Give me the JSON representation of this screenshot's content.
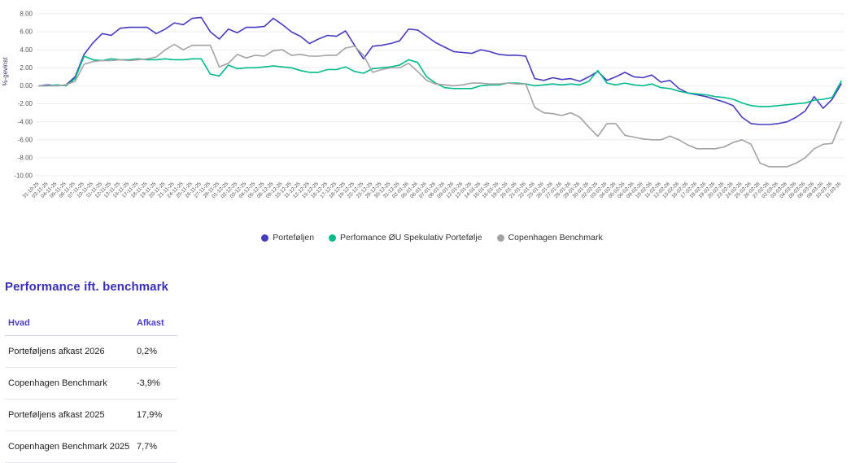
{
  "chart_data": {
    "type": "line",
    "title": "",
    "ylabel": "%-gevinst",
    "ylim": [
      -10,
      8
    ],
    "ytick_step": 2,
    "grid": true,
    "legend_position": "bottom",
    "x": [
      "31-10-25",
      "03-11-25",
      "04-11-25",
      "05-11-25",
      "06-11-25",
      "07-11-25",
      "10-11-25",
      "11-11-25",
      "12-11-25",
      "13-11-25",
      "14-11-25",
      "17-11-25",
      "18-11-25",
      "19-11-25",
      "20-11-25",
      "21-11-25",
      "24-11-25",
      "25-11-25",
      "26-11-25",
      "27-11-25",
      "28-11-25",
      "01-12-25",
      "02-12-25",
      "03-12-25",
      "04-12-25",
      "05-12-25",
      "08-12-25",
      "09-12-25",
      "10-12-25",
      "11-12-25",
      "12-12-25",
      "15-12-25",
      "16-12-25",
      "17-12-25",
      "18-12-25",
      "19-12-25",
      "22-12-25",
      "23-12-25",
      "29-12-25",
      "30-12-25",
      "31-12-25",
      "02-01-26",
      "05-01-26",
      "06-01-26",
      "07-01-26",
      "08-01-26",
      "09-01-26",
      "12-01-26",
      "13-01-26",
      "14-01-26",
      "15-01-26",
      "16-01-26",
      "19-01-26",
      "20-01-26",
      "21-01-26",
      "22-01-26",
      "23-01-26",
      "26-01-26",
      "27-01-26",
      "28-01-26",
      "29-01-26",
      "30-01-26",
      "02-02-26",
      "03-02-26",
      "04-02-26",
      "05-02-26",
      "06-02-26",
      "09-02-26",
      "10-02-26",
      "11-02-26",
      "12-02-26",
      "13-02-26",
      "16-02-26",
      "17-02-26",
      "18-02-26",
      "19-02-26",
      "20-02-26",
      "23-02-26",
      "24-02-26",
      "25-02-26",
      "26-02-26",
      "27-02-26",
      "02-03-26",
      "03-03-26",
      "04-03-26",
      "05-03-26",
      "06-03-26",
      "09-03-26",
      "10-03-26",
      "11-03-26"
    ],
    "series": [
      {
        "name": "Porteføljen",
        "color": "#473cc0",
        "values": [
          0,
          0.1,
          0,
          0.1,
          1.0,
          3.5,
          4.8,
          5.8,
          5.6,
          6.4,
          6.5,
          6.5,
          6.5,
          5.8,
          6.3,
          7.0,
          6.8,
          7.5,
          7.6,
          6.0,
          5.2,
          6.3,
          5.9,
          6.5,
          6.5,
          6.6,
          7.5,
          6.8,
          6.0,
          5.5,
          4.7,
          5.2,
          5.6,
          5.5,
          6.1,
          4.5,
          3.0,
          4.4,
          4.5,
          4.7,
          5.0,
          6.3,
          6.2,
          5.5,
          4.8,
          4.3,
          3.8,
          3.7,
          3.6,
          4.0,
          3.8,
          3.5,
          3.4,
          3.4,
          3.3,
          0.8,
          0.6,
          0.9,
          0.7,
          0.8,
          0.5,
          1.0,
          1.6,
          0.6,
          1.0,
          1.5,
          1.0,
          0.9,
          1.2,
          0.4,
          0.6,
          -0.3,
          -0.8,
          -1.0,
          -1.2,
          -1.5,
          -1.8,
          -2.2,
          -3.5,
          -4.2,
          -4.3,
          -4.3,
          -4.2,
          -4.0,
          -3.5,
          -2.8,
          -1.2,
          -2.5,
          -1.5,
          0.2
        ]
      },
      {
        "name": "Perfomance ØU Spekulativ Portefølje",
        "color": "#00bb8d",
        "values": [
          0,
          0,
          0.1,
          0,
          0.8,
          3.3,
          2.9,
          2.8,
          3.0,
          2.9,
          2.9,
          3.0,
          2.9,
          2.9,
          3.0,
          2.9,
          2.9,
          3.0,
          3.0,
          1.3,
          1.1,
          2.3,
          1.9,
          2.0,
          2.0,
          2.1,
          2.2,
          2.1,
          2.0,
          1.7,
          1.5,
          1.5,
          1.8,
          1.8,
          2.1,
          1.6,
          1.4,
          1.9,
          2.0,
          2.1,
          2.3,
          2.9,
          2.6,
          1.0,
          0.3,
          -0.2,
          -0.3,
          -0.3,
          -0.3,
          0.0,
          0.1,
          0.1,
          0.3,
          0.3,
          0.2,
          0.0,
          0.1,
          0.2,
          0.1,
          0.2,
          0.1,
          0.5,
          1.7,
          0.3,
          0.1,
          0.3,
          0.1,
          0.0,
          0.2,
          -0.2,
          -0.3,
          -0.6,
          -0.8,
          -0.9,
          -1.0,
          -1.2,
          -1.3,
          -1.5,
          -1.9,
          -2.2,
          -2.3,
          -2.3,
          -2.2,
          -2.1,
          -2.0,
          -1.9,
          -1.6,
          -1.5,
          -1.3,
          0.5
        ]
      },
      {
        "name": "Copenhagen Benchmark",
        "color": "#a3a3a3",
        "values": [
          0,
          0,
          0,
          0.1,
          0.5,
          2.4,
          2.7,
          2.8,
          2.8,
          2.9,
          2.8,
          2.9,
          3.0,
          3.2,
          4.0,
          4.6,
          4.0,
          4.5,
          4.5,
          4.5,
          2.1,
          2.5,
          3.5,
          3.1,
          3.4,
          3.3,
          3.9,
          4.0,
          3.4,
          3.5,
          3.3,
          3.3,
          3.4,
          3.4,
          4.2,
          4.4,
          3.4,
          1.5,
          1.8,
          2.0,
          2.0,
          2.5,
          1.6,
          0.6,
          0.2,
          0.1,
          0.0,
          0.1,
          0.3,
          0.3,
          0.2,
          0.2,
          0.3,
          0.2,
          0.2,
          -2.4,
          -3.0,
          -3.1,
          -3.3,
          -3.0,
          -3.5,
          -4.6,
          -5.6,
          -4.2,
          -4.2,
          -5.5,
          -5.7,
          -5.9,
          -6.0,
          -6.0,
          -5.6,
          -6.0,
          -6.6,
          -7.0,
          -7.0,
          -7.0,
          -6.8,
          -6.3,
          -6.0,
          -6.5,
          -8.6,
          -9.0,
          -9.0,
          -9.0,
          -8.6,
          -8.0,
          -7.0,
          -6.5,
          -6.4,
          -4.0
        ]
      }
    ]
  },
  "section": {
    "title": "Performance ift. benchmark"
  },
  "table": {
    "headers": [
      "Hvad",
      "Afkast"
    ],
    "rows": [
      [
        "Porteføljens afkast 2026",
        "0,2%"
      ],
      [
        "Copenhagen Benchmark",
        "-3,9%"
      ],
      [
        "Porteføljens afkast 2025",
        "17,9%"
      ],
      [
        "Copenhagen Benchmark 2025",
        "7,7%"
      ]
    ]
  }
}
